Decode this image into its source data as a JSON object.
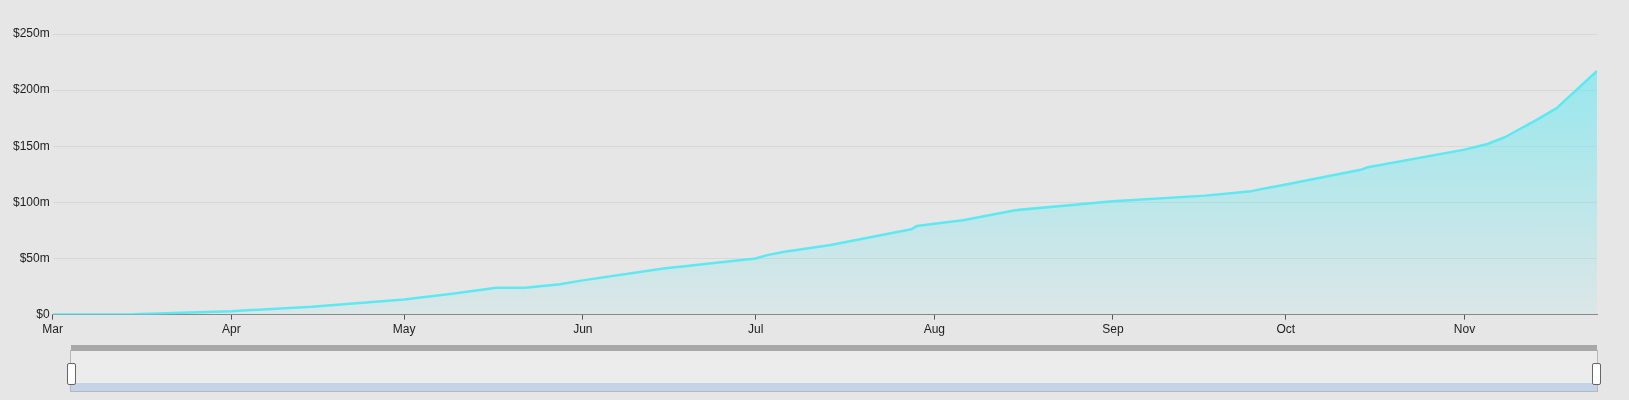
{
  "chart_data": {
    "type": "area",
    "x": [
      "--03-01",
      "--03-15",
      "--04-01",
      "--04-15",
      "--05-01",
      "--05-10",
      "--05-17",
      "--05-22",
      "--05-28",
      "--06-01",
      "--06-15",
      "--07-01",
      "--07-03",
      "--07-06",
      "--07-14",
      "--07-28",
      "--07-29",
      "--08-01",
      "--08-06",
      "--08-15",
      "--09-01",
      "--09-17",
      "--09-25",
      "--10-01",
      "--10-14",
      "--10-15",
      "--11-01",
      "--11-05",
      "--11-08",
      "--11-13",
      "--11-17",
      "--11-24"
    ],
    "series": [
      {
        "color": "#5ee9f2",
        "values": [
          0,
          0.3,
          3,
          7,
          13.5,
          19,
          24,
          24,
          27,
          30.5,
          41,
          50,
          53,
          56,
          62,
          76,
          79,
          81,
          84,
          93,
          101,
          106,
          110,
          116,
          129,
          131,
          147,
          152,
          158,
          172,
          184,
          217
        ]
      }
    ],
    "xlim": [
      "--03-01",
      "--11-24"
    ],
    "xticks": [
      {
        "value": "--03-01",
        "label": "Mar"
      },
      {
        "value": "--04-01",
        "label": "Apr"
      },
      {
        "value": "--05-01",
        "label": "May"
      },
      {
        "value": "--06-01",
        "label": "Jun"
      },
      {
        "value": "--07-01",
        "label": "Jul"
      },
      {
        "value": "--08-01",
        "label": "Aug"
      },
      {
        "value": "--09-01",
        "label": "Sep"
      },
      {
        "value": "--10-01",
        "label": "Oct"
      },
      {
        "value": "--11-01",
        "label": "Nov"
      }
    ],
    "ylim": [
      0,
      250
    ],
    "yticks": [
      {
        "value": 0,
        "label": "$0"
      },
      {
        "value": 50,
        "label": "$50m"
      },
      {
        "value": 100,
        "label": "$100m"
      },
      {
        "value": 150,
        "label": "$150m"
      },
      {
        "value": 200,
        "label": "$200m"
      },
      {
        "value": 250,
        "label": "$250m"
      }
    ],
    "grid": "y",
    "legend": false,
    "marker": "none",
    "line_style": "solid"
  }
}
